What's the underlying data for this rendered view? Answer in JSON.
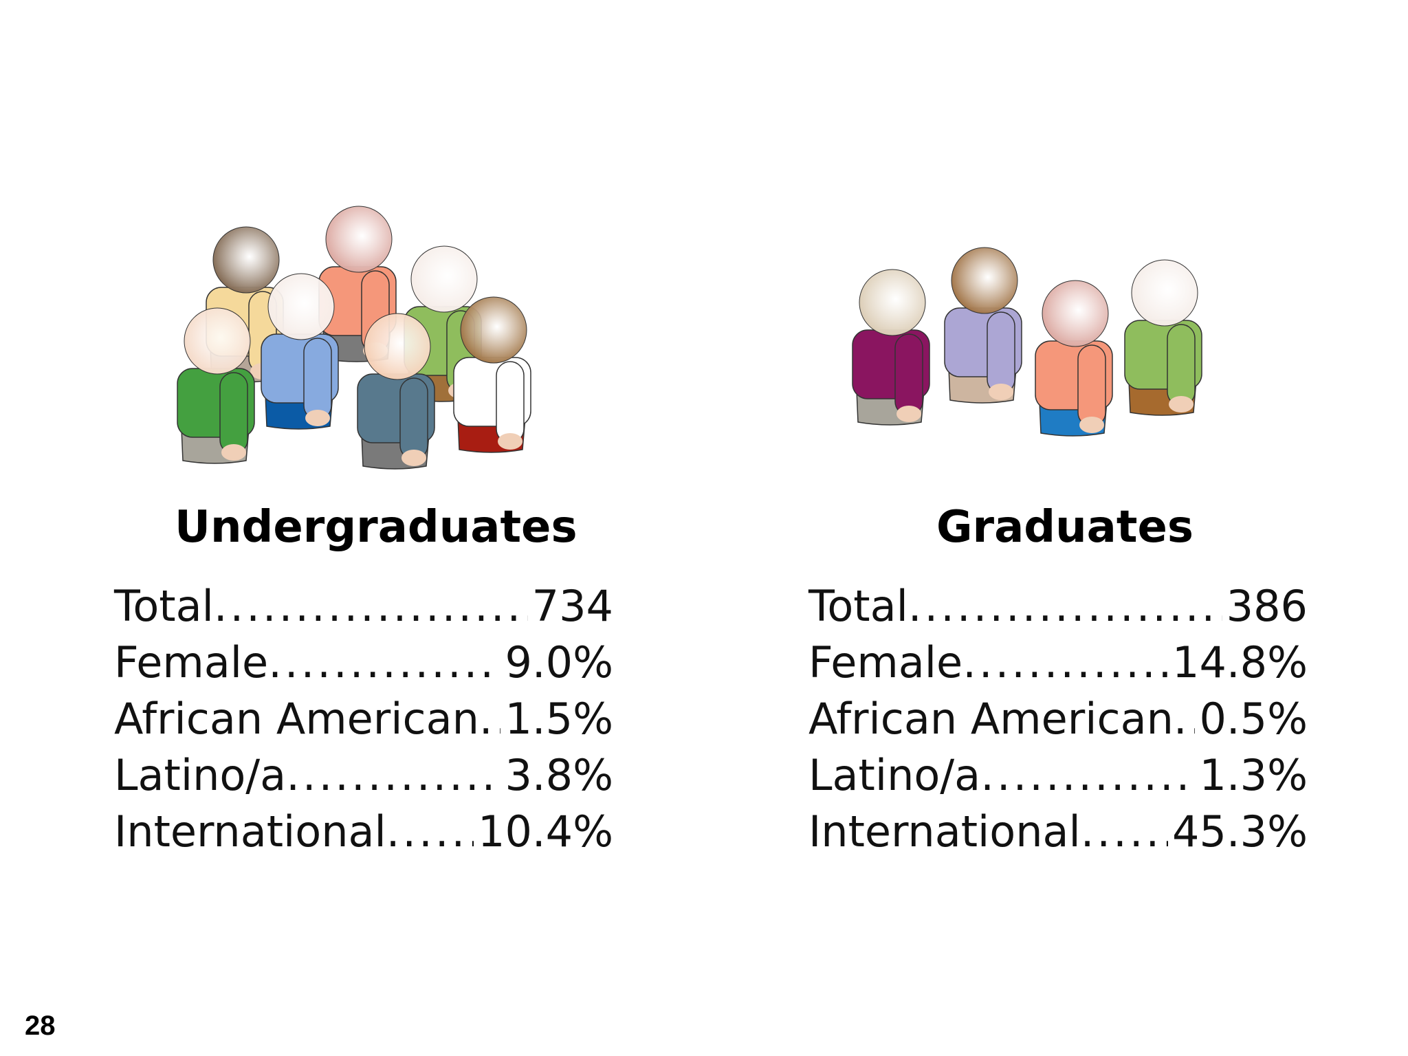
{
  "colors": {
    "outline": "#333333",
    "hand_tone": "#f0cfb7"
  },
  "undergraduates": {
    "title": "Undergraduates",
    "stats": [
      {
        "label": "Total",
        "value": "734"
      },
      {
        "label": "Female",
        "value": "9.0%"
      },
      {
        "label": "African American",
        "value": "1.5%"
      },
      {
        "label": "Latino/a",
        "value": "3.8%"
      },
      {
        "label": "International",
        "value": "10.4%"
      }
    ],
    "figures": [
      {
        "name": "person-figure-brown-head",
        "head": "#7a6048",
        "shirt": "#f5d99b",
        "pants": "#b5a598"
      },
      {
        "name": "person-figure-pink-head",
        "head": "#d9a29a",
        "shirt": "#f5977a",
        "pants": "#7a7a7a"
      },
      {
        "name": "person-figure-green-shirt-back",
        "head": "#f5ebe6",
        "shirt": "#8fbd5d",
        "pants": "#a0703a"
      },
      {
        "name": "person-figure-blue-shirt",
        "head": "#f5ebe6",
        "shirt": "#87aadf",
        "pants": "#0b5ba6"
      },
      {
        "name": "person-figure-green-shirt-front",
        "head": "#f4d8c5",
        "shirt": "#44a040",
        "pants": "#a8a59b"
      },
      {
        "name": "person-figure-slate-shirt",
        "head": "#f4ccb0",
        "shirt": "#58798d",
        "pants": "#7a7a7a"
      },
      {
        "name": "person-figure-white-shirt",
        "head": "#9a6c3a",
        "shirt": "#ffffff",
        "pants": "#a81d12"
      }
    ]
  },
  "graduates": {
    "title": "Graduates",
    "stats": [
      {
        "label": "Total",
        "value": "386"
      },
      {
        "label": "Female",
        "value": "14.8%"
      },
      {
        "label": "African American",
        "value": "0.5%"
      },
      {
        "label": "Latino/a",
        "value": "1.3%"
      },
      {
        "label": "International",
        "value": "45.3%"
      }
    ],
    "figures": [
      {
        "name": "person-figure-purple-shirt",
        "head": "#d9c9b0",
        "shirt": "#8a1560",
        "pants": "#a8a59b"
      },
      {
        "name": "person-figure-lavender-shirt",
        "head": "#9a6a3a",
        "shirt": "#aca6d4",
        "pants": "#cdb5a0"
      },
      {
        "name": "person-figure-salmon-shirt",
        "head": "#d9a29a",
        "shirt": "#f5977a",
        "pants": "#1f7cc4"
      },
      {
        "name": "person-figure-green-shirt",
        "head": "#f4ebe6",
        "shirt": "#8fbd5d",
        "pants": "#a66a2e"
      }
    ]
  },
  "page_number": "28"
}
